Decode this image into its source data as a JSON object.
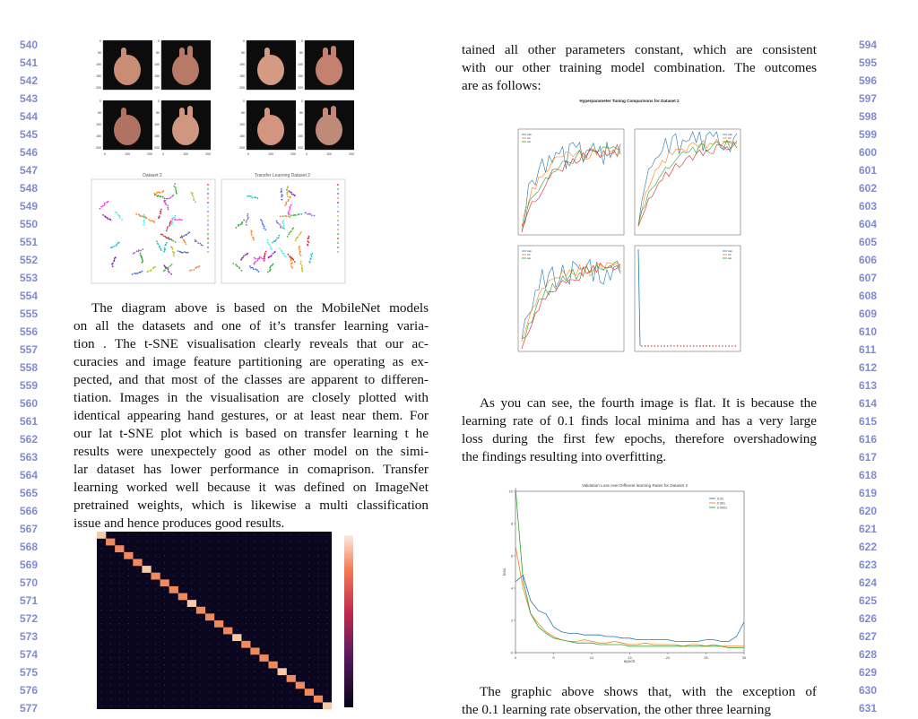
{
  "line_numbers": {
    "left": [
      "540",
      "541",
      "542",
      "543",
      "544",
      "545",
      "546",
      "547",
      "548",
      "549",
      "550",
      "551",
      "552",
      "553",
      "554",
      "555",
      "556",
      "557",
      "558",
      "559",
      "560",
      "561",
      "562",
      "563",
      "564",
      "565",
      "566",
      "567",
      "568",
      "569",
      "570",
      "571",
      "572",
      "573",
      "574",
      "575",
      "576",
      "577"
    ],
    "right": [
      "594",
      "595",
      "596",
      "597",
      "598",
      "599",
      "600",
      "601",
      "602",
      "603",
      "604",
      "605",
      "606",
      "607",
      "608",
      "609",
      "610",
      "611",
      "612",
      "613",
      "614",
      "615",
      "616",
      "617",
      "618",
      "619",
      "620",
      "621",
      "622",
      "623",
      "624",
      "625",
      "626",
      "627",
      "628",
      "629",
      "630",
      "631"
    ]
  },
  "left_column": {
    "paragraph_lines": [
      "The diagram above is based on the MobileNet models",
      "on all the datasets and one of it’s transfer learning varia-",
      "tion . The t-SNE visualisation clearly reveals that our ac-",
      "curacies and image feature partitioning are operating as ex-",
      "pected, and that most of the classes are apparent to differen-",
      "tiation. Images in the visualisation are closely plotted with",
      "identical appearing hand gestures, or at least near them. For",
      "our lat t-SNE plot which is based on transfer learning t he",
      "results were unexpectely good as other model on the simi-",
      "lar dataset has lower performance in comaprison. Transfer",
      "learning worked well because it was defined on ImageNet",
      "pretrained weights, which is likewise a multi classification",
      "issue and hence produces good results."
    ]
  },
  "right_column": {
    "intro_lines": [
      "tained all other parameters constant, which are consistent",
      "with our other training model combination. The outcomes",
      "are as follows:"
    ],
    "paragraph_lines": [
      "As you can see, the fourth image is flat. It is because the",
      "learning rate of 0.1 finds local minima and has a very large",
      "loss during the first few epochs, therefore overshadowing",
      "the findings resulting into overfitting."
    ],
    "closing_lines": [
      "The graphic above shows that, with the exception of",
      "the 0.1 learning rate observation, the other three learning"
    ]
  },
  "figures": {
    "hand_grid": {
      "tick_y": [
        "0",
        "50",
        "100",
        "150",
        "200"
      ],
      "tick_x": [
        "0",
        "100",
        "200"
      ]
    },
    "tsne": {
      "titles": [
        "Dataset 2",
        "Transfer Learning Dataset 2"
      ]
    },
    "confusion_matrix": {
      "note": "heatmap with strong diagonal"
    },
    "hyperparam_grid": {
      "title": "Hyperparameter Tuning Comparisons for Dataset 2",
      "legend": [
        "train",
        "val",
        "test"
      ]
    },
    "validation_loss": {
      "title": "Validation Loss over Different learning Rates for Dataset 2",
      "xlabel": "epoch",
      "ylabel": "loss",
      "legend": [
        "0.01",
        "0.001",
        "0.0001"
      ]
    }
  },
  "chart_data": [
    {
      "type": "line",
      "title": "Validation Loss over Different learning Rates for Dataset 2",
      "xlabel": "epoch",
      "ylabel": "loss",
      "xlim": [
        0,
        30
      ],
      "ylim": [
        0,
        10
      ],
      "x_ticks": [
        "0",
        "5",
        "10",
        "15",
        "20",
        "25",
        "30"
      ],
      "y_ticks": [
        "0",
        "2",
        "4",
        "6",
        "8",
        "10"
      ],
      "x": [
        0,
        1,
        2,
        3,
        4,
        5,
        6,
        7,
        8,
        9,
        10,
        11,
        12,
        13,
        14,
        15,
        16,
        17,
        18,
        19,
        20,
        21,
        22,
        23,
        24,
        25,
        26,
        27,
        28,
        29,
        30
      ],
      "series": [
        {
          "name": "0.01",
          "color": "#1f77b4",
          "values": [
            4.4,
            4.8,
            3.2,
            2.6,
            2.4,
            1.6,
            1.3,
            1.2,
            1.2,
            1.1,
            1.1,
            1.1,
            1.0,
            1.0,
            0.9,
            0.9,
            0.8,
            0.8,
            0.8,
            0.8,
            0.8,
            0.7,
            0.7,
            0.7,
            0.7,
            0.8,
            0.8,
            0.7,
            0.7,
            1.0,
            1.9
          ]
        },
        {
          "name": "0.001",
          "color": "#ff7f0e",
          "values": [
            6.6,
            4.0,
            2.4,
            1.8,
            1.3,
            1.0,
            0.8,
            0.7,
            0.7,
            0.8,
            0.7,
            0.6,
            0.6,
            0.7,
            0.6,
            0.5,
            0.5,
            0.6,
            0.5,
            0.5,
            0.5,
            0.5,
            0.4,
            0.5,
            0.5,
            0.4,
            0.5,
            0.4,
            0.4,
            0.4,
            0.4
          ]
        },
        {
          "name": "0.0001",
          "color": "#2ca02c",
          "values": [
            10.2,
            4.5,
            2.4,
            1.6,
            1.2,
            0.9,
            0.8,
            0.7,
            0.6,
            0.6,
            0.6,
            0.5,
            0.5,
            0.5,
            0.5,
            0.4,
            0.4,
            0.4,
            0.4,
            0.4,
            0.4,
            0.4,
            0.4,
            0.4,
            0.4,
            0.4,
            0.4,
            0.4,
            0.3,
            0.3,
            0.3
          ]
        }
      ]
    }
  ]
}
